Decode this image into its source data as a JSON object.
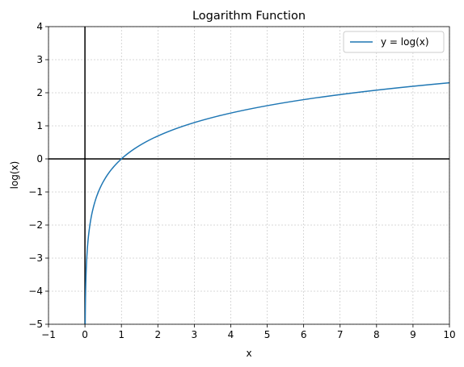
{
  "chart_data": {
    "type": "line",
    "title": "Logarithm Function",
    "xlabel": "x",
    "ylabel": "log(x)",
    "xlim": [
      -1,
      10
    ],
    "ylim": [
      -5,
      4
    ],
    "xticks": [
      -1,
      0,
      1,
      2,
      3,
      4,
      5,
      6,
      7,
      8,
      9,
      10
    ],
    "yticks": [
      -5,
      -4,
      -3,
      -2,
      -1,
      0,
      1,
      2,
      3,
      4
    ],
    "grid": true,
    "legend_position": "top-right",
    "reference_lines": {
      "x": 0,
      "y": 0
    },
    "series": [
      {
        "name": "y = log(x)",
        "function": "ln",
        "x_start": 0.0067,
        "x_end": 10,
        "color": "#1f77b4",
        "points": [
          [
            0.0067,
            -5.0
          ],
          [
            0.01,
            -4.605
          ],
          [
            0.02,
            -3.912
          ],
          [
            0.05,
            -2.996
          ],
          [
            0.1,
            -2.303
          ],
          [
            0.2,
            -1.609
          ],
          [
            0.3,
            -1.204
          ],
          [
            0.5,
            -0.693
          ],
          [
            0.7,
            -0.357
          ],
          [
            1,
            0.0
          ],
          [
            1.5,
            0.405
          ],
          [
            2,
            0.693
          ],
          [
            3,
            1.099
          ],
          [
            4,
            1.386
          ],
          [
            5,
            1.609
          ],
          [
            6,
            1.792
          ],
          [
            7,
            1.946
          ],
          [
            8,
            2.079
          ],
          [
            9,
            2.197
          ],
          [
            10,
            2.303
          ]
        ]
      }
    ]
  }
}
